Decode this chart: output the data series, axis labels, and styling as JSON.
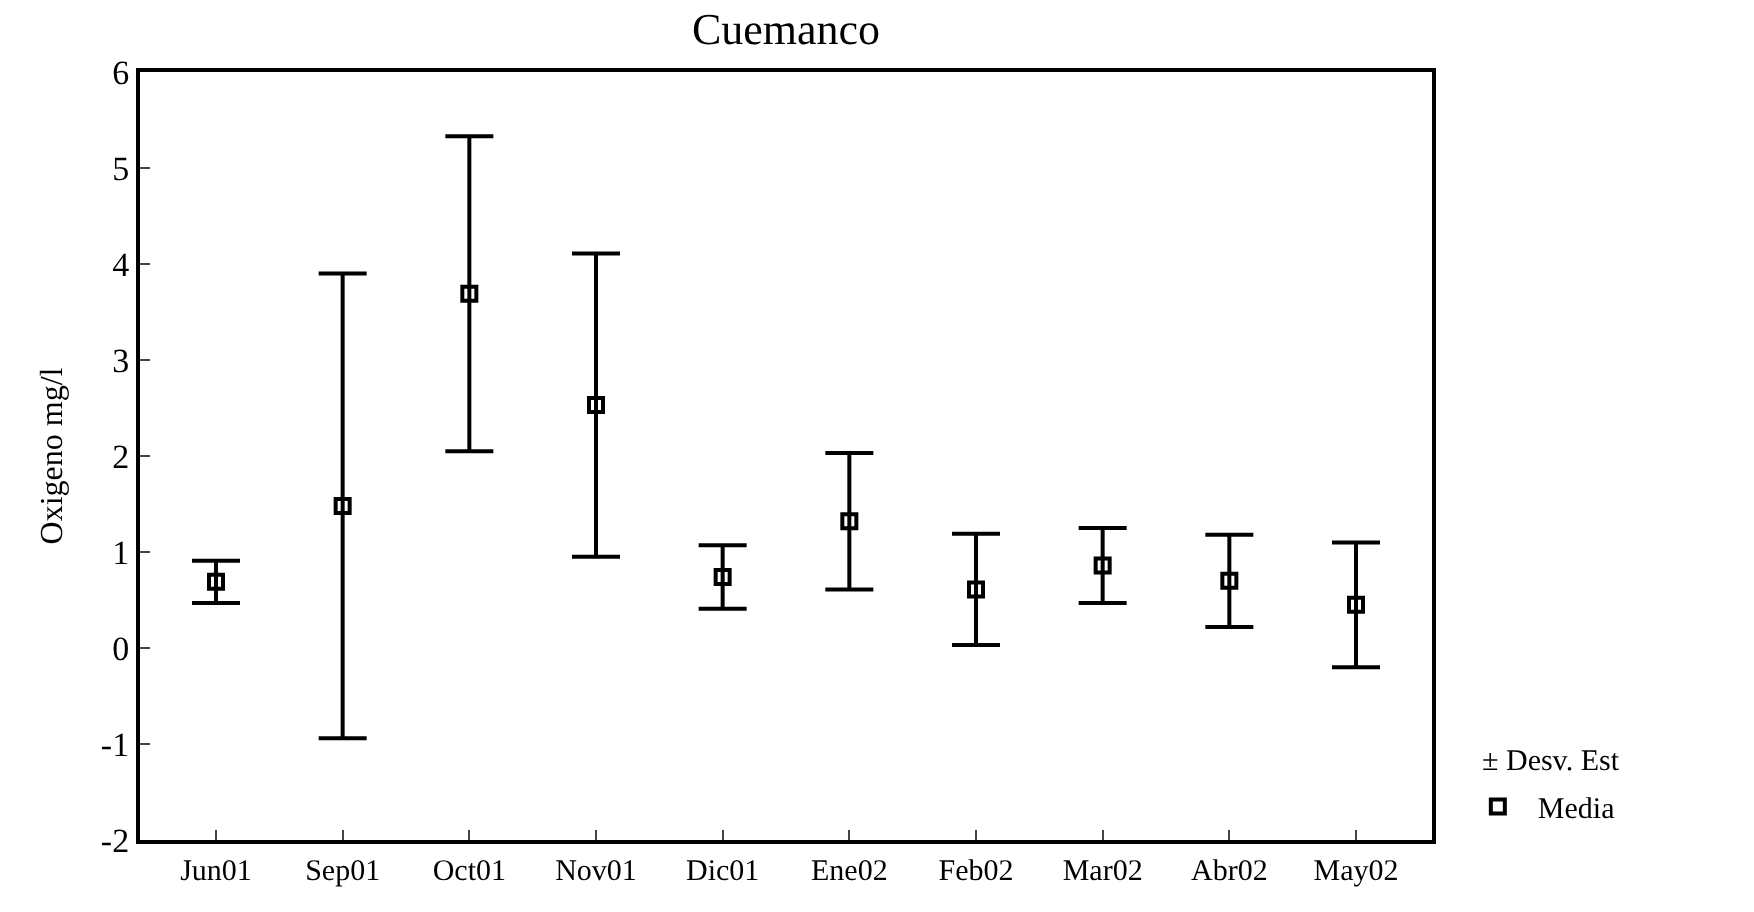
{
  "chart_data": {
    "type": "scatter",
    "title": "Cuemanco",
    "ylabel": "Oxigeno mg/l",
    "categories": [
      "Jun01",
      "Sep01",
      "Oct01",
      "Nov01",
      "Dic01",
      "Ene02",
      "Feb02",
      "Mar02",
      "Abr02",
      "May02"
    ],
    "series": [
      {
        "name": "Media",
        "color": "#000000",
        "values": [
          0.69,
          1.48,
          3.69,
          2.53,
          0.74,
          1.32,
          0.61,
          0.86,
          0.7,
          0.45
        ],
        "errors": [
          0.22,
          2.42,
          1.64,
          1.58,
          0.33,
          0.71,
          0.58,
          0.39,
          0.48,
          0.65
        ]
      }
    ],
    "ylim": [
      -2,
      6
    ],
    "yticks": [
      -2,
      -1,
      0,
      1,
      2,
      3,
      4,
      5,
      6
    ],
    "marker": "square",
    "legend": "bottom right",
    "annotations": [
      "± Desv. Est"
    ]
  }
}
